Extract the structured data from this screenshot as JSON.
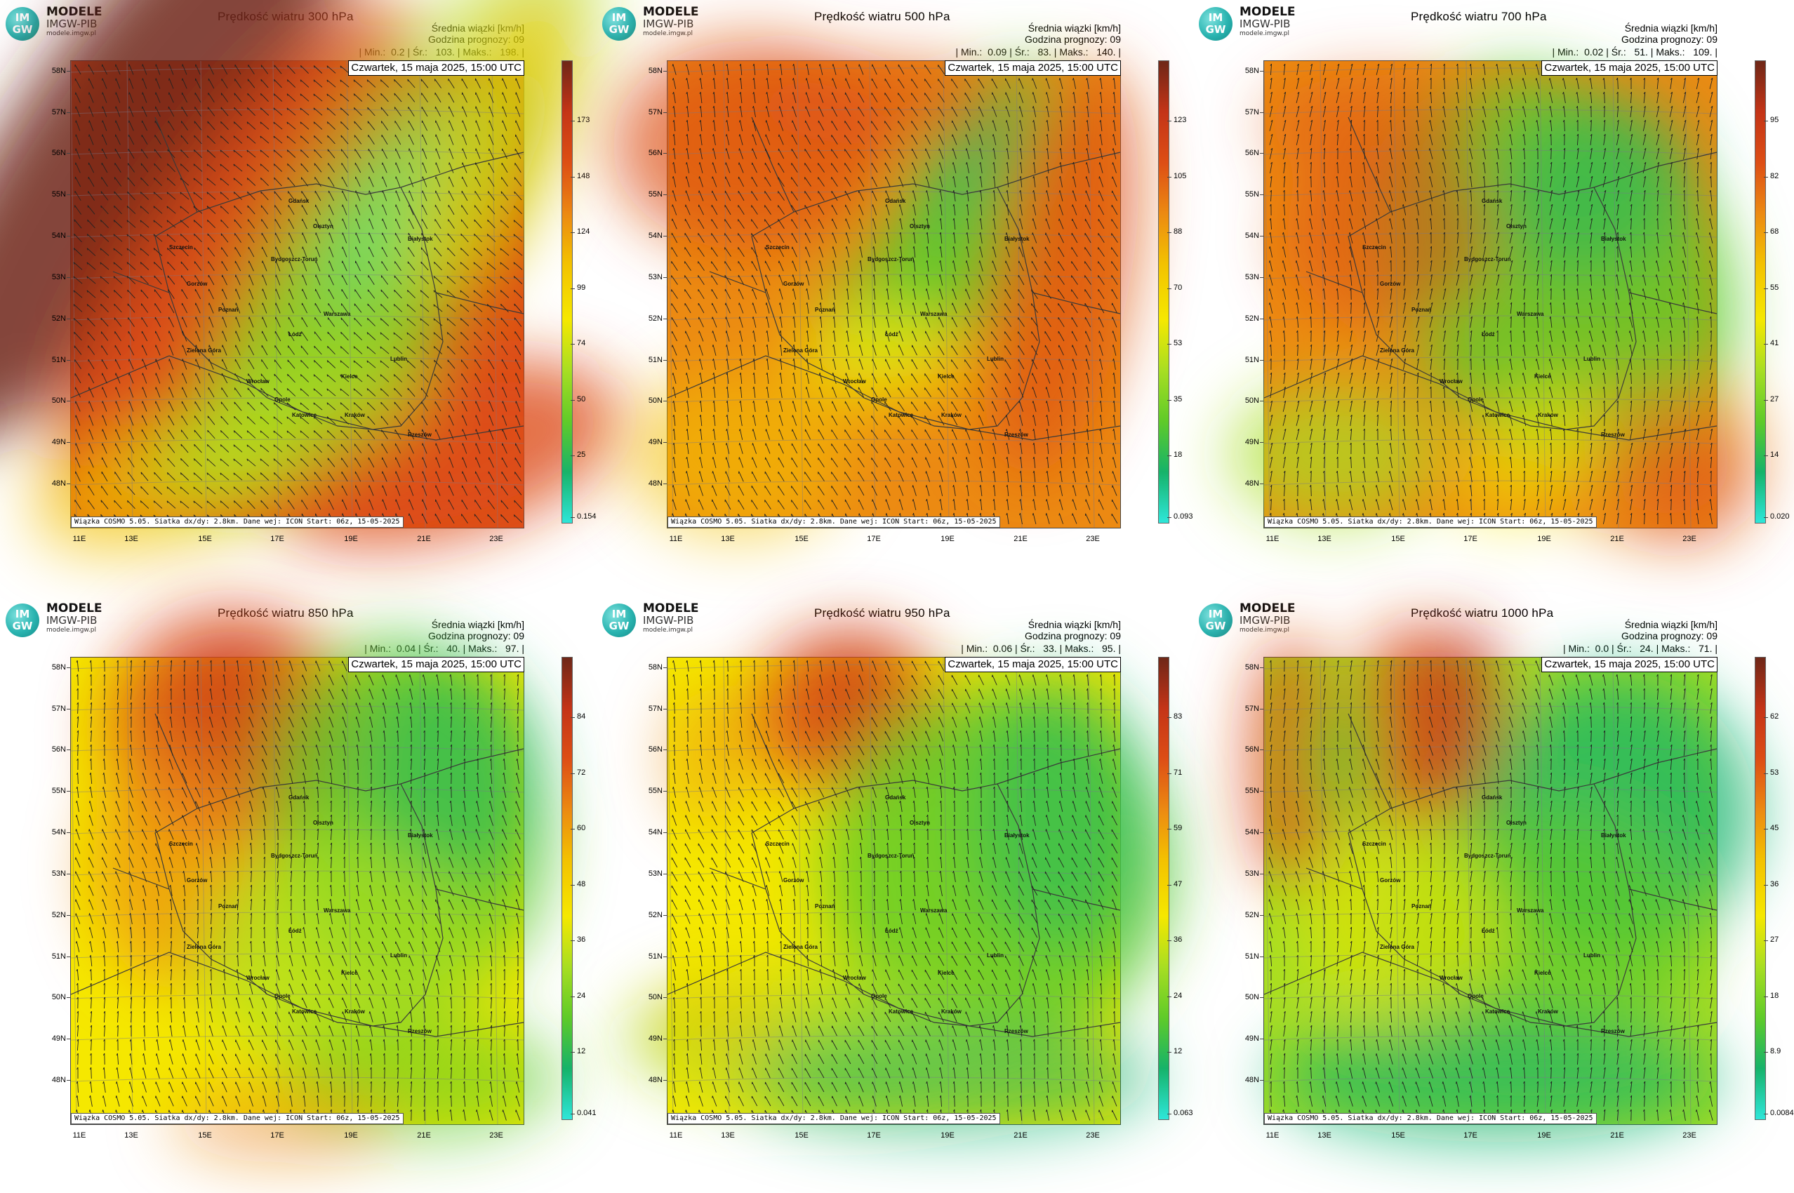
{
  "brand": {
    "line1": "MODELE",
    "line2": "IMGW-PIB",
    "line3": "modele.imgw.pl",
    "logo_top": "IM",
    "logo_bottom": "GW"
  },
  "common": {
    "unit_label": "Średnia wiązki [km/h]",
    "forecast_hour": "Godzina prognozy: 09",
    "date": "Czwartek, 15 maja 2025, 15:00 UTC",
    "credit": "Wiązka COSMO 5.05. Siatka dx/dy: 2.8km. Dane wej: ICON Start: 06z, 15-05-2025",
    "lat_labels": [
      "58N",
      "57N",
      "56N",
      "55N",
      "54N",
      "53N",
      "52N",
      "51N",
      "50N",
      "49N",
      "48N"
    ],
    "lon_labels": [
      "11E",
      "13E",
      "15E",
      "17E",
      "19E",
      "21E",
      "23E"
    ],
    "cities": [
      "Szczecin",
      "Gdańsk",
      "Olsztyn",
      "Białystok",
      "Bydgoszcz-Toruń",
      "Gorzów",
      "Poznań",
      "Warszawa",
      "Zielona Góra",
      "Łódź",
      "Lublin",
      "Wrocław",
      "Kielce",
      "Opole",
      "Rzeszów",
      "Katowice",
      "Kraków"
    ]
  },
  "colors": {
    "scale": [
      "#2ee6d9",
      "#16b36a",
      "#5fcb29",
      "#a8de22",
      "#f5e800",
      "#f3c200",
      "#ec8a12",
      "#dd4e15",
      "#c43417",
      "#6e2717"
    ]
  },
  "panels": [
    {
      "title": "Prędkość wiatru 300 hPa",
      "min": "0.2",
      "avg": "103.",
      "max": "198.",
      "cbar": [
        "173",
        "148",
        "124",
        "99",
        "74",
        "50",
        "25",
        "0.154"
      ],
      "pattern": "p300"
    },
    {
      "title": "Prędkość wiatru 500 hPa",
      "min": "0.09",
      "avg": "83.",
      "max": "140.",
      "cbar": [
        "123",
        "105",
        "88",
        "70",
        "53",
        "35",
        "18",
        "0.093"
      ],
      "pattern": "p500"
    },
    {
      "title": "Prędkość wiatru 700 hPa",
      "min": "0.02",
      "avg": "51.",
      "max": "109.",
      "cbar": [
        "95",
        "82",
        "68",
        "55",
        "41",
        "27",
        "14",
        "0.020"
      ],
      "pattern": "p700"
    },
    {
      "title": "Prędkość wiatru 850 hPa",
      "min": "0.04",
      "avg": "40.",
      "max": "97.",
      "cbar": [
        "84",
        "72",
        "60",
        "48",
        "36",
        "24",
        "12",
        "0.041"
      ],
      "pattern": "p850"
    },
    {
      "title": "Prędkość wiatru 950 hPa",
      "min": "0.06",
      "avg": "33.",
      "max": "95.",
      "cbar": [
        "83",
        "71",
        "59",
        "47",
        "36",
        "24",
        "12",
        "0.063"
      ],
      "pattern": "p950"
    },
    {
      "title": "Prędkość wiatru 1000 hPa",
      "min": "0.0",
      "avg": "24.",
      "max": "71.",
      "cbar": [
        "62",
        "53",
        "45",
        "36",
        "27",
        "18",
        "8.9",
        "0.0084"
      ],
      "pattern": "p1000"
    }
  ]
}
